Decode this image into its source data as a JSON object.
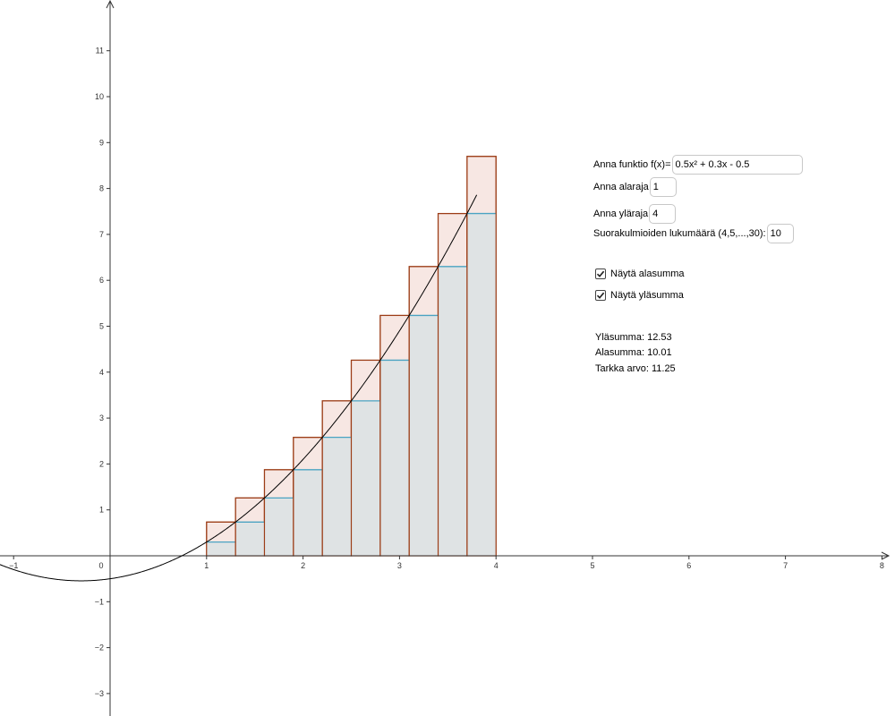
{
  "graph": {
    "function": {
      "a": 0.5,
      "b": 0.3,
      "c": -0.5
    },
    "x_axis": {
      "ticks": [
        "−1",
        "0",
        "1",
        "2",
        "3",
        "4",
        "5",
        "6",
        "7",
        "8"
      ]
    },
    "y_axis": {
      "ticks": [
        "−3",
        "−2",
        "−1",
        "1",
        "2",
        "3",
        "4",
        "5",
        "6",
        "7",
        "8",
        "9",
        "10",
        "11"
      ]
    },
    "rectangles": {
      "lower": 1,
      "upper": 4,
      "count": 10
    },
    "colors": {
      "upper_fill": "#f7e7e3",
      "upper_stroke": "#9c3d17",
      "lower_fill": "#dfe3e4",
      "lower_top": "#4aa3c2"
    }
  },
  "panel": {
    "function_label": "Anna funktio f(x)=",
    "function_value": "0.5x² + 0.3x - 0.5",
    "lower_label": "Anna alaraja",
    "lower_value": "1",
    "upper_label": "Anna yläraja",
    "upper_value": "4",
    "count_label": "Suorakulmioiden lukumäärä (4,5,...,30):",
    "count_value": "10",
    "show_lower_label": "Näytä alasumma",
    "show_lower_checked": true,
    "show_upper_label": "Näytä yläsumma",
    "show_upper_checked": true,
    "upper_sum": "Yläsumma: 12.53",
    "lower_sum": "Alasumma: 10.01",
    "exact_value": "Tarkka arvo: 11.25"
  }
}
